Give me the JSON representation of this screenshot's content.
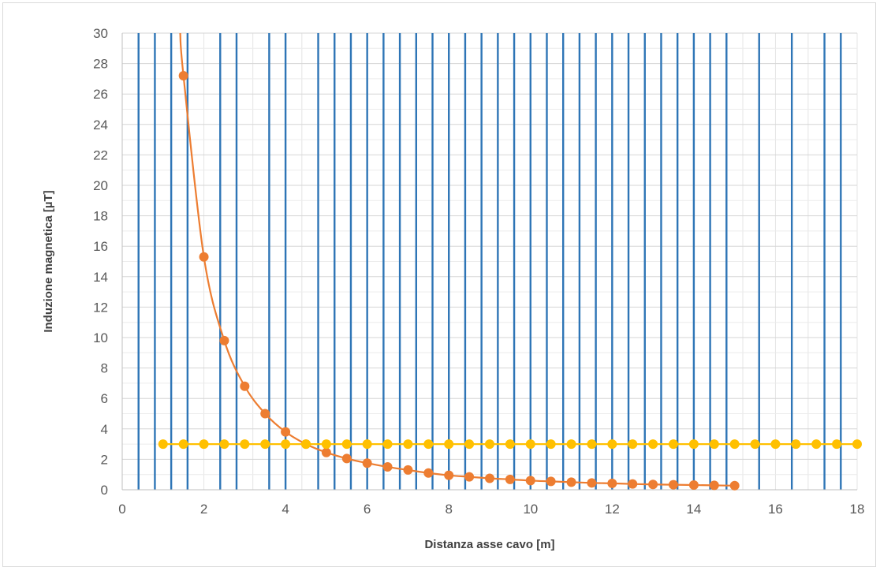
{
  "chart_data": {
    "type": "scatter",
    "title": "",
    "xlabel": "Distanza asse cavo [m]",
    "ylabel": "Induzione magnetica [µT]",
    "xlim": [
      0,
      18
    ],
    "ylim": [
      0,
      30
    ],
    "x_ticks": [
      "0",
      "2",
      "4",
      "6",
      "8",
      "10",
      "12",
      "14",
      "16",
      "18"
    ],
    "y_ticks": [
      "0",
      "2",
      "4",
      "6",
      "8",
      "10",
      "12",
      "14",
      "16",
      "18",
      "20",
      "22",
      "24",
      "26",
      "28",
      "30"
    ],
    "grid": true,
    "legend": "none",
    "series": [
      {
        "color": "#ed7d31",
        "line": "smooth",
        "x": [
          1.5,
          2,
          2.5,
          3,
          3.5,
          4,
          4.5,
          5,
          5.5,
          6,
          6.5,
          7,
          7.5,
          8,
          8.5,
          9,
          9.5,
          10,
          10.5,
          11,
          11.5,
          12,
          12.5,
          13,
          13.5,
          14,
          14.5,
          15
        ],
        "y": [
          27.2,
          15.3,
          9.8,
          6.8,
          5.0,
          3.8,
          3.0,
          2.45,
          2.05,
          1.75,
          1.5,
          1.3,
          1.1,
          0.95,
          0.85,
          0.75,
          0.68,
          0.6,
          0.55,
          0.5,
          0.45,
          0.42,
          0.38,
          0.35,
          0.33,
          0.31,
          0.29,
          0.27
        ],
        "curve_extension": [
          [
            1.42,
            30.0
          ]
        ]
      },
      {
        "color": "#ffc000",
        "line": "straight",
        "x": [
          1,
          1.5,
          2,
          2.5,
          3,
          3.5,
          4,
          4.5,
          5,
          5.5,
          6,
          6.5,
          7,
          7.5,
          8,
          8.5,
          9,
          9.5,
          10,
          10.5,
          11,
          11.5,
          12,
          12.5,
          13,
          13.5,
          14,
          14.5,
          15,
          15.5,
          16,
          16.5,
          17,
          17.5,
          18
        ],
        "y": [
          3,
          3,
          3,
          3,
          3,
          3,
          3,
          3,
          3,
          3,
          3,
          3,
          3,
          3,
          3,
          3,
          3,
          3,
          3,
          3,
          3,
          3,
          3,
          3,
          3,
          3,
          3,
          3,
          3,
          3,
          3,
          3,
          3,
          3,
          3
        ]
      }
    ],
    "blue_verticals_x": [
      0.4,
      0.8,
      1.2,
      1.6,
      2.4,
      2.8,
      3.6,
      4.0,
      4.8,
      5.2,
      5.6,
      6.0,
      6.4,
      6.8,
      7.2,
      7.6,
      8.0,
      8.4,
      8.8,
      9.2,
      9.6,
      10.0,
      10.4,
      10.8,
      11.2,
      11.6,
      12.0,
      12.4,
      12.8,
      13.2,
      13.6,
      14.0,
      14.4,
      14.8,
      15.6,
      16.4,
      17.2,
      17.6
    ],
    "blue_vertical_color": "#2e75b6",
    "minor_grid_color": "#e4e4e4"
  }
}
